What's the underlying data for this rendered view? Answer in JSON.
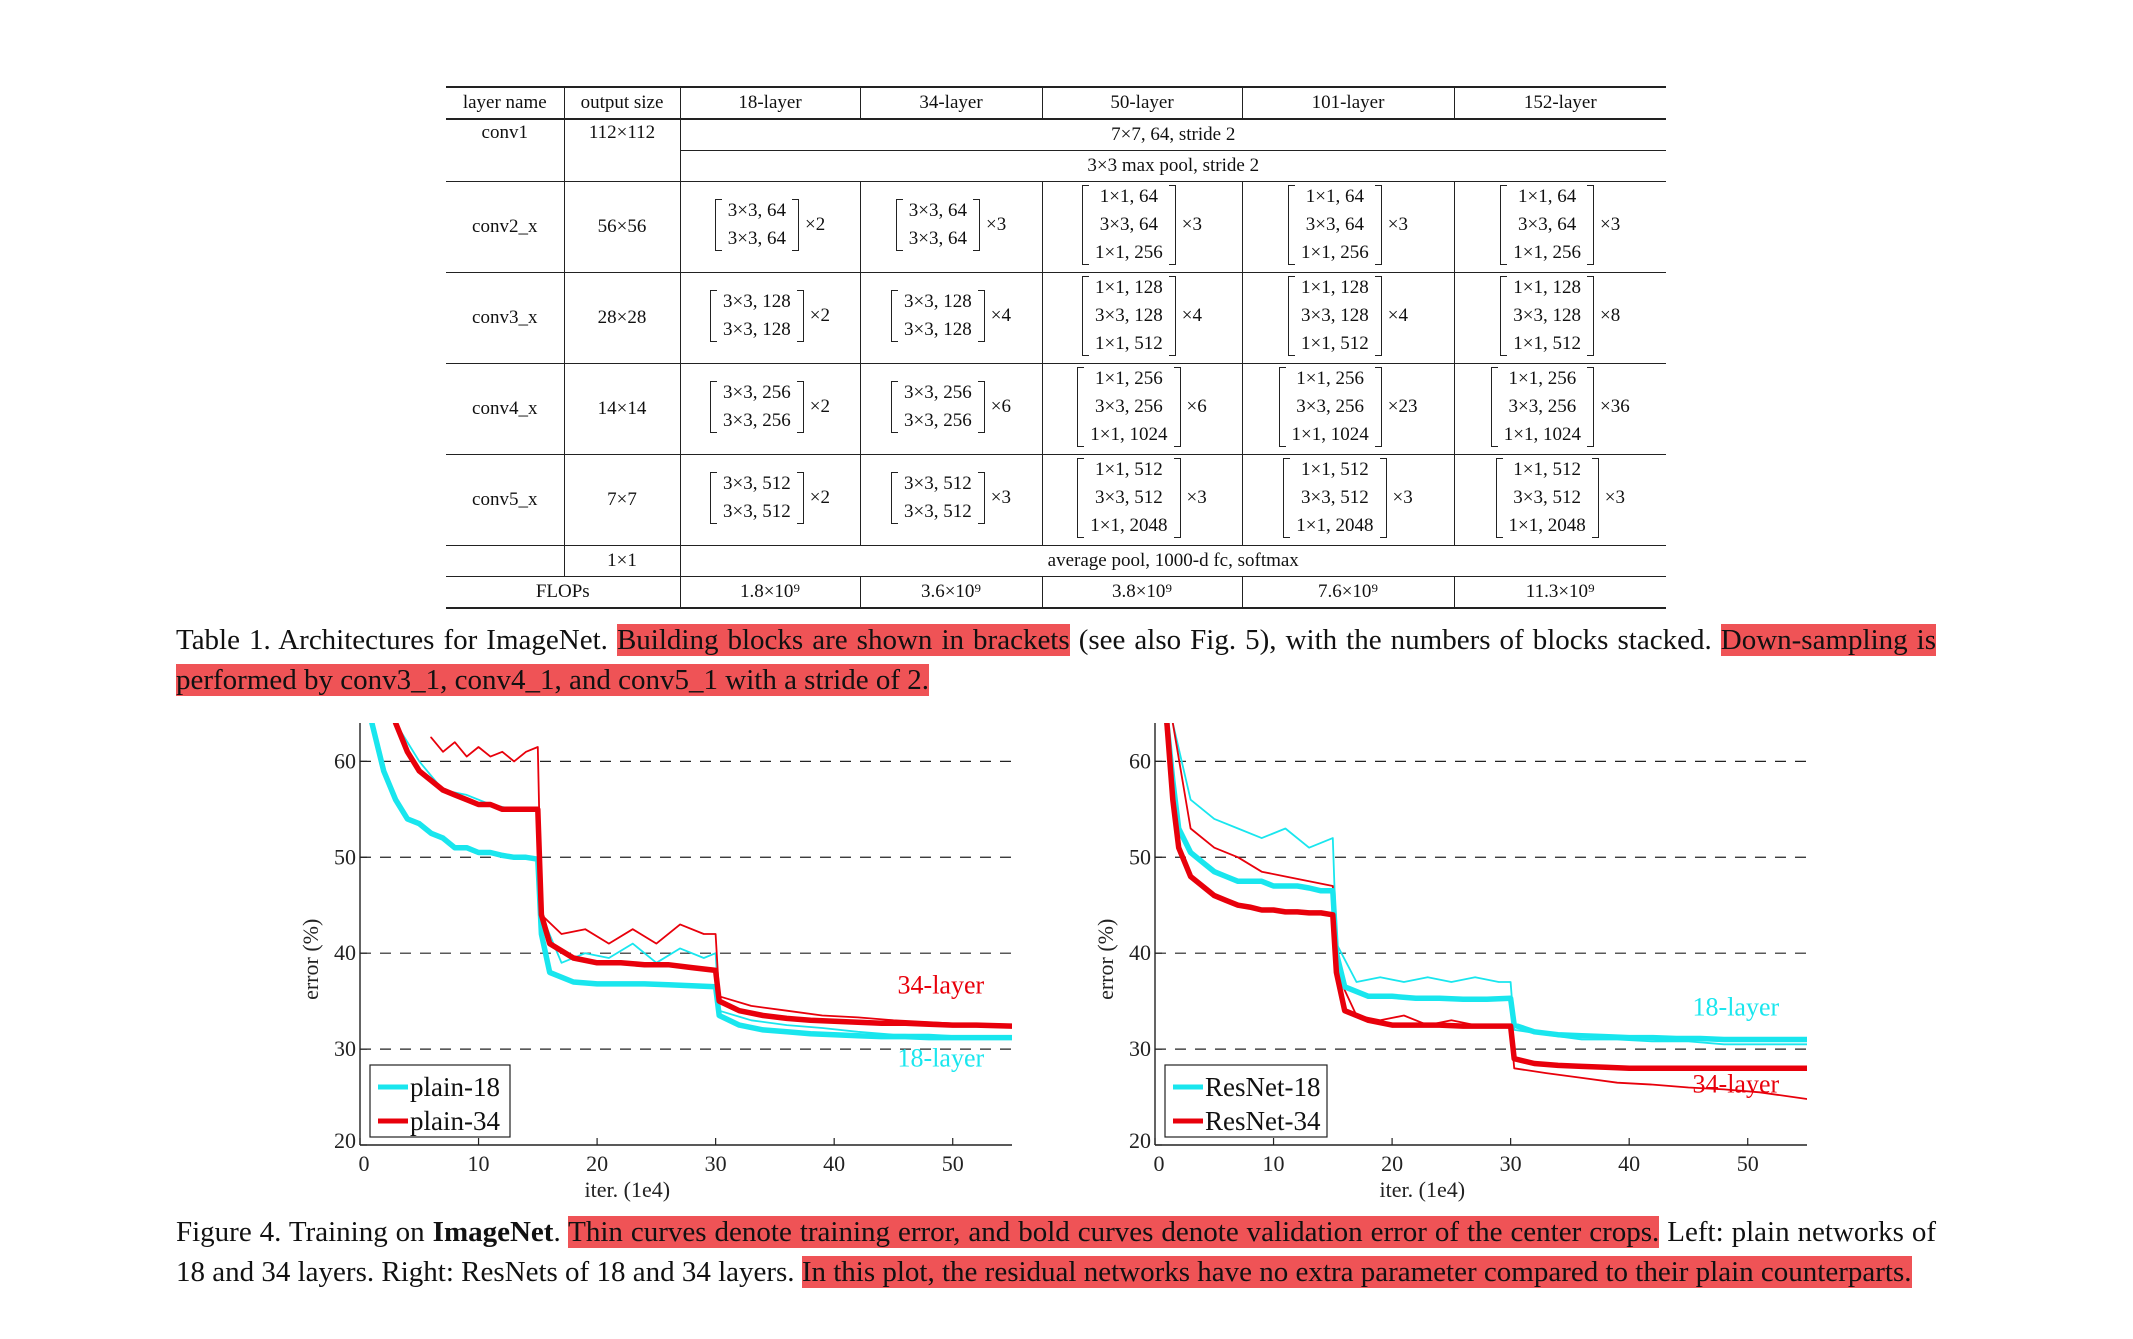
{
  "table": {
    "headers": [
      "layer name",
      "output size",
      "18-layer",
      "34-layer",
      "50-layer",
      "101-layer",
      "152-layer"
    ],
    "conv1": {
      "name": "conv1",
      "size": "112×112",
      "spec": "7×7, 64, stride 2"
    },
    "maxpool": "3×3 max pool, stride 2",
    "stages": [
      {
        "name": "conv2_x",
        "size": "56×56",
        "basic": [
          "3×3, 64",
          "3×3, 64"
        ],
        "bottleneck": [
          "1×1, 64",
          "3×3, 64",
          "1×1, 256"
        ],
        "mults": [
          "×2",
          "×3",
          "×3",
          "×3",
          "×3"
        ]
      },
      {
        "name": "conv3_x",
        "size": "28×28",
        "basic": [
          "3×3, 128",
          "3×3, 128"
        ],
        "bottleneck": [
          "1×1, 128",
          "3×3, 128",
          "1×1, 512"
        ],
        "mults": [
          "×2",
          "×4",
          "×4",
          "×4",
          "×8"
        ]
      },
      {
        "name": "conv4_x",
        "size": "14×14",
        "basic": [
          "3×3, 256",
          "3×3, 256"
        ],
        "bottleneck": [
          "1×1, 256",
          "3×3, 256",
          "1×1, 1024"
        ],
        "mults": [
          "×2",
          "×6",
          "×6",
          "×23",
          "×36"
        ]
      },
      {
        "name": "conv5_x",
        "size": "7×7",
        "basic": [
          "3×3, 512",
          "3×3, 512"
        ],
        "bottleneck": [
          "1×1, 512",
          "3×3, 512",
          "1×1, 2048"
        ],
        "mults": [
          "×2",
          "×3",
          "×3",
          "×3",
          "×3"
        ]
      }
    ],
    "final": {
      "size": "1×1",
      "spec": "average pool, 1000-d fc, softmax"
    },
    "flops": {
      "label": "FLOPs",
      "values": [
        "1.8×10⁹",
        "3.6×10⁹",
        "3.8×10⁹",
        "7.6×10⁹",
        "11.3×10⁹"
      ]
    }
  },
  "table_caption": {
    "prefix": "Table 1. Architectures for ImageNet. ",
    "hl1": "Building blocks are shown in brackets",
    "mid": " (see also Fig. 5), with the numbers of blocks stacked. ",
    "hl2": "Down-sampling is performed by conv3_1, conv4_1, and conv5_1 with a stride of 2."
  },
  "figure_caption": {
    "prefix": "Figure 4. Training on ",
    "bold": "ImageNet",
    "after_bold": ". ",
    "hl1": "Thin curves denote training error, and bold curves denote validation error of the center crops.",
    "mid": " Left: plain networks of 18 and 34 layers. Right: ResNets of 18 and 34 layers. ",
    "hl2": "In this plot, the residual networks have no extra parameter compared to their plain counterparts."
  },
  "colors": {
    "cyan": "#19e6ee",
    "red": "#e8000b",
    "highlight": "#ef5356"
  },
  "chart_data": [
    {
      "type": "line",
      "title": "",
      "xlabel": "iter. (1e4)",
      "ylabel": "error (%)",
      "xlim": [
        0,
        55
      ],
      "ylim": [
        20,
        64
      ],
      "xticks": [
        0,
        10,
        20,
        30,
        40,
        50
      ],
      "yticks": [
        20,
        30,
        40,
        50,
        60
      ],
      "grid": "dashed horizontal at 30,40,50,60",
      "legend_position": "bottom-left",
      "annotations": [
        {
          "text": "34-layer",
          "color": "red",
          "x": 49,
          "y": 35.8
        },
        {
          "text": "18-layer",
          "color": "cyan",
          "x": 49,
          "y": 28.2
        }
      ],
      "series": [
        {
          "name": "plain-18",
          "style": "bold",
          "color": "cyan",
          "legend": true,
          "x": [
            1,
            2,
            3,
            4,
            5,
            6,
            7,
            8,
            9,
            10,
            11,
            12,
            13,
            14,
            15,
            15.3,
            16,
            18,
            20,
            22,
            24,
            26,
            28,
            30,
            30.3,
            32,
            34,
            36,
            38,
            40,
            42,
            44,
            46,
            48,
            50,
            52,
            55
          ],
          "y": [
            64,
            59,
            56,
            54,
            53.5,
            52.5,
            52,
            51,
            51,
            50.5,
            50.5,
            50.2,
            50,
            50,
            49.8,
            42,
            38,
            37,
            36.8,
            36.8,
            36.8,
            36.7,
            36.6,
            36.5,
            33.5,
            32.5,
            32,
            31.8,
            31.6,
            31.5,
            31.4,
            31.3,
            31.3,
            31.2,
            31.2,
            31.2,
            31.2
          ]
        },
        {
          "name": "plain-34",
          "style": "bold",
          "color": "red",
          "legend": true,
          "x": [
            3,
            4,
            5,
            6,
            7,
            8,
            9,
            10,
            11,
            12,
            13,
            14,
            15,
            15.3,
            16,
            18,
            20,
            22,
            24,
            26,
            28,
            30,
            30.3,
            32,
            34,
            36,
            38,
            40,
            42,
            44,
            46,
            48,
            50,
            52,
            55
          ],
          "y": [
            64,
            61,
            59,
            58,
            57,
            56.5,
            56,
            55.5,
            55.5,
            55,
            55,
            55,
            55,
            44,
            41,
            39.5,
            39,
            39,
            38.8,
            38.8,
            38.5,
            38.2,
            35,
            34,
            33.5,
            33.2,
            33,
            32.9,
            32.8,
            32.7,
            32.7,
            32.6,
            32.5,
            32.5,
            32.4
          ]
        },
        {
          "name": "plain-18 train",
          "style": "thin",
          "color": "cyan",
          "legend": false,
          "x": [
            3,
            5,
            7,
            9,
            11,
            13,
            15,
            15.3,
            17,
            19,
            21,
            23,
            25,
            27,
            29,
            30,
            30.3,
            33,
            36,
            39,
            42,
            45,
            48,
            51,
            55
          ],
          "y": [
            64,
            60,
            57,
            56.5,
            55.5,
            55,
            55,
            44,
            39,
            40,
            39.5,
            41,
            39,
            40.5,
            39.5,
            40,
            34,
            33,
            32.5,
            32.2,
            31.8,
            31.5,
            31.5,
            31.3,
            31.3
          ]
        },
        {
          "name": "plain-34 train",
          "style": "thin",
          "color": "red",
          "legend": false,
          "x": [
            6,
            7,
            8,
            9,
            10,
            11,
            12,
            13,
            14,
            15,
            15.3,
            17,
            19,
            21,
            23,
            25,
            27,
            29,
            30,
            30.3,
            33,
            36,
            39,
            42,
            45,
            48,
            51,
            55
          ],
          "y": [
            62.5,
            61,
            62,
            60.5,
            61.5,
            60.5,
            61,
            60,
            61,
            61.5,
            44,
            42,
            42.5,
            41,
            42.5,
            41,
            43,
            42,
            42,
            35.5,
            34.5,
            34,
            33.5,
            33.3,
            33,
            32.8,
            32.6,
            32.4
          ]
        }
      ],
      "legend": [
        "plain-18",
        "plain-34"
      ]
    },
    {
      "type": "line",
      "title": "",
      "xlabel": "iter. (1e4)",
      "ylabel": "error (%)",
      "xlim": [
        0,
        55
      ],
      "ylim": [
        20,
        64
      ],
      "xticks": [
        0,
        10,
        20,
        30,
        40,
        50
      ],
      "yticks": [
        20,
        30,
        40,
        50,
        60
      ],
      "grid": "dashed horizontal at 30,40,50,60",
      "legend_position": "bottom-left",
      "annotations": [
        {
          "text": "18-layer",
          "color": "cyan",
          "x": 49,
          "y": 33.5
        },
        {
          "text": "34-layer",
          "color": "red",
          "x": 49,
          "y": 25.5
        }
      ],
      "series": [
        {
          "name": "ResNet-18",
          "style": "bold",
          "color": "cyan",
          "legend": true,
          "x": [
            1,
            1.5,
            2,
            3,
            4,
            5,
            6,
            7,
            8,
            9,
            10,
            11,
            12,
            13,
            14,
            15,
            15.3,
            16,
            18,
            20,
            22,
            24,
            26,
            28,
            30,
            30.3,
            32,
            34,
            36,
            38,
            40,
            42,
            44,
            46,
            48,
            50,
            52,
            55
          ],
          "y": [
            64,
            58,
            53,
            50.5,
            49.5,
            48.5,
            48,
            47.5,
            47.5,
            47.5,
            47,
            47,
            47,
            46.8,
            46.5,
            46.5,
            40,
            36.5,
            35.5,
            35.5,
            35.3,
            35.3,
            35.2,
            35.2,
            35.3,
            32.5,
            31.8,
            31.5,
            31.4,
            31.3,
            31.2,
            31.2,
            31.1,
            31.1,
            31,
            31,
            31,
            31
          ]
        },
        {
          "name": "ResNet-34",
          "style": "bold",
          "color": "red",
          "legend": true,
          "x": [
            1,
            1.5,
            2,
            3,
            4,
            5,
            6,
            7,
            8,
            9,
            10,
            11,
            12,
            13,
            14,
            15,
            15.3,
            16,
            18,
            20,
            22,
            24,
            26,
            28,
            30,
            30.3,
            32,
            34,
            36,
            38,
            40,
            42,
            44,
            46,
            48,
            50,
            52,
            55
          ],
          "y": [
            64,
            56,
            51,
            48,
            47,
            46,
            45.5,
            45,
            44.8,
            44.5,
            44.5,
            44.3,
            44.3,
            44.2,
            44.2,
            44,
            38,
            34,
            33,
            32.5,
            32.5,
            32.5,
            32.4,
            32.4,
            32.4,
            29,
            28.5,
            28.3,
            28.2,
            28.1,
            28,
            28,
            28,
            28,
            28,
            28,
            28,
            28
          ]
        },
        {
          "name": "ResNet-18 train",
          "style": "thin",
          "color": "cyan",
          "legend": false,
          "x": [
            1.5,
            3,
            5,
            7,
            9,
            11,
            13,
            15,
            15.3,
            17,
            19,
            21,
            23,
            25,
            27,
            29,
            30,
            30.3,
            33,
            36,
            39,
            42,
            45,
            48,
            51,
            55
          ],
          "y": [
            64,
            56,
            54,
            53,
            52,
            53,
            51,
            52,
            41,
            37,
            37.5,
            37,
            37.5,
            37,
            37.5,
            37,
            37,
            32,
            31.5,
            31,
            31,
            30.8,
            30.8,
            30.5,
            30.5,
            30.5
          ]
        },
        {
          "name": "ResNet-34 train",
          "style": "thin",
          "color": "red",
          "legend": false,
          "x": [
            1.5,
            3,
            5,
            7,
            9,
            11,
            13,
            15,
            15.3,
            17,
            19,
            21,
            23,
            25,
            27,
            29,
            30,
            30.3,
            33,
            36,
            39,
            42,
            45,
            48,
            51,
            55
          ],
          "y": [
            64,
            53,
            51,
            50,
            48.5,
            48,
            47.5,
            47,
            38,
            33.5,
            33,
            33.5,
            32.5,
            33,
            32.5,
            32.5,
            32.5,
            28,
            27.5,
            27,
            26.5,
            26.3,
            26,
            25.8,
            25.5,
            24.8
          ]
        }
      ],
      "legend": [
        "ResNet-18",
        "ResNet-34"
      ]
    }
  ]
}
